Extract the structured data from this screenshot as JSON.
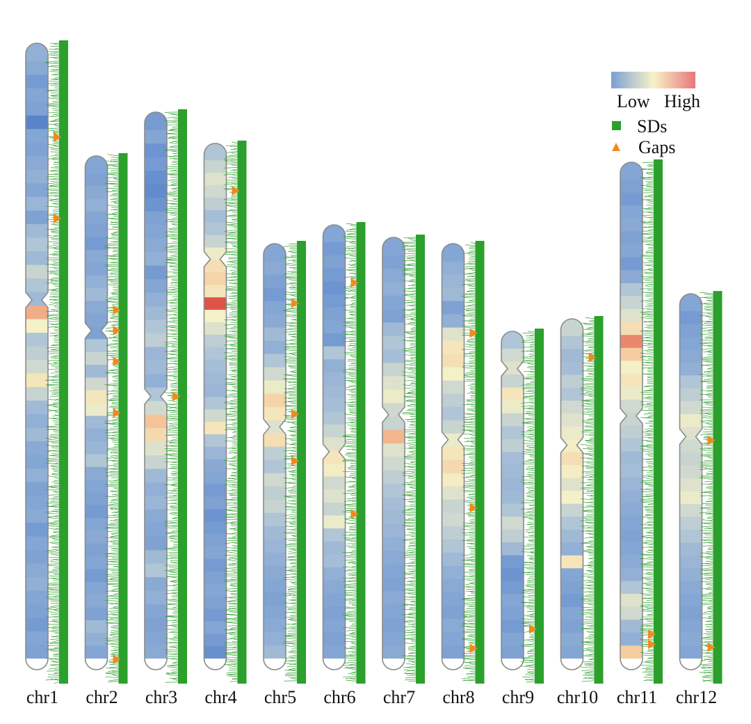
{
  "chart_data": {
    "type": "chromosome-ideogram",
    "title": "",
    "description_units": "positions are fractions of chromosome length (0 = top, 1 = bottom); density values 0 = low, 1 = high",
    "legend": {
      "gradient_low_label": "Low",
      "gradient_high_label": "High",
      "gradient_colors": [
        "#7b9fd3",
        "#f7f3c9",
        "#e8777a"
      ],
      "sds_label": "SDs",
      "gaps_label": "Gaps",
      "sds_color": "#2ca02c",
      "gaps_color": "#f08a1c"
    },
    "colorscale": [
      "#4a79c8",
      "#7b9fd3",
      "#a9c0d6",
      "#f4f1c8",
      "#f6c99c",
      "#eb8f73",
      "#d93a33"
    ],
    "chromosomes": [
      {
        "name": "chr1",
        "relative_length": 1.0,
        "centromere": 0.41,
        "density": [
          0.25,
          0.22,
          0.15,
          0.2,
          0.18,
          0.05,
          0.2,
          0.18,
          0.22,
          0.25,
          0.2,
          0.28,
          0.18,
          0.3,
          0.35,
          0.3,
          0.4,
          0.35,
          0.3,
          0.75,
          0.5,
          0.35,
          0.38,
          0.42,
          0.55,
          0.4,
          0.3,
          0.25,
          0.3,
          0.22,
          0.2,
          0.25,
          0.18,
          0.2,
          0.22,
          0.15,
          0.2,
          0.18,
          0.22,
          0.25,
          0.2,
          0.18,
          0.15,
          0.2,
          0.18
        ],
        "gaps": [
          0.15,
          0.28
        ]
      },
      {
        "name": "chr2",
        "relative_length": 0.82,
        "centromere": 0.34,
        "density": [
          0.2,
          0.18,
          0.22,
          0.25,
          0.2,
          0.18,
          0.15,
          0.22,
          0.2,
          0.25,
          0.3,
          0.22,
          0.2,
          0.18,
          0.35,
          0.4,
          0.3,
          0.42,
          0.55,
          0.48,
          0.3,
          0.25,
          0.28,
          0.35,
          0.22,
          0.2,
          0.18,
          0.15,
          0.2,
          0.22,
          0.18,
          0.2,
          0.15,
          0.2,
          0.22,
          0.18,
          0.3,
          0.25,
          0.2
        ],
        "gaps": [
          0.3,
          0.34,
          0.4,
          0.5,
          0.98
        ]
      },
      {
        "name": "chr3",
        "relative_length": 0.89,
        "centromere": 0.51,
        "density": [
          0.15,
          0.2,
          0.12,
          0.15,
          0.1,
          0.08,
          0.12,
          0.18,
          0.2,
          0.22,
          0.25,
          0.15,
          0.2,
          0.25,
          0.3,
          0.35,
          0.38,
          0.28,
          0.3,
          0.25,
          0.35,
          0.42,
          0.68,
          0.6,
          0.45,
          0.4,
          0.3,
          0.25,
          0.28,
          0.22,
          0.2,
          0.18,
          0.3,
          0.35,
          0.22,
          0.25,
          0.2,
          0.18,
          0.2,
          0.22
        ],
        "gaps": [
          0.51
        ]
      },
      {
        "name": "chr4",
        "relative_length": 0.84,
        "centromere": 0.22,
        "density": [
          0.35,
          0.4,
          0.45,
          0.42,
          0.38,
          0.32,
          0.35,
          0.4,
          0.48,
          0.58,
          0.62,
          0.55,
          0.95,
          0.5,
          0.45,
          0.38,
          0.35,
          0.32,
          0.3,
          0.28,
          0.35,
          0.42,
          0.55,
          0.35,
          0.28,
          0.22,
          0.2,
          0.15,
          0.18,
          0.12,
          0.15,
          0.18,
          0.2,
          0.15,
          0.18,
          0.2,
          0.18,
          0.15,
          0.2,
          0.15,
          0.1
        ],
        "gaps": [
          0.09
        ]
      },
      {
        "name": "chr5",
        "relative_length": 0.68,
        "centromere": 0.43,
        "density": [
          0.2,
          0.22,
          0.18,
          0.15,
          0.2,
          0.22,
          0.3,
          0.25,
          0.35,
          0.42,
          0.48,
          0.62,
          0.55,
          0.45,
          0.58,
          0.38,
          0.35,
          0.42,
          0.38,
          0.4,
          0.35,
          0.3,
          0.28,
          0.25,
          0.22,
          0.2,
          0.18,
          0.2,
          0.22,
          0.25,
          0.3
        ],
        "gaps": [
          0.14,
          0.4,
          0.51
        ]
      },
      {
        "name": "chr6",
        "relative_length": 0.71,
        "centromere": 0.51,
        "density": [
          0.2,
          0.15,
          0.18,
          0.15,
          0.12,
          0.15,
          0.18,
          0.2,
          0.15,
          0.35,
          0.25,
          0.28,
          0.3,
          0.32,
          0.35,
          0.4,
          0.45,
          0.55,
          0.52,
          0.42,
          0.45,
          0.4,
          0.48,
          0.35,
          0.3,
          0.32,
          0.25,
          0.22,
          0.2,
          0.18,
          0.2,
          0.18,
          0.2
        ],
        "gaps": [
          0.13,
          0.65
        ]
      },
      {
        "name": "chr7",
        "relative_length": 0.69,
        "centromere": 0.41,
        "density": [
          0.2,
          0.18,
          0.22,
          0.25,
          0.2,
          0.18,
          0.3,
          0.35,
          0.32,
          0.4,
          0.45,
          0.48,
          0.42,
          0.4,
          0.72,
          0.45,
          0.42,
          0.38,
          0.35,
          0.32,
          0.3,
          0.28,
          0.25,
          0.22,
          0.2,
          0.18,
          0.22,
          0.2,
          0.18,
          0.2,
          0.22
        ]
      },
      {
        "name": "chr8",
        "relative_length": 0.68,
        "centromere": 0.46,
        "density": [
          0.2,
          0.25,
          0.28,
          0.3,
          0.18,
          0.25,
          0.45,
          0.55,
          0.58,
          0.5,
          0.42,
          0.38,
          0.35,
          0.4,
          0.48,
          0.55,
          0.6,
          0.52,
          0.45,
          0.4,
          0.42,
          0.38,
          0.35,
          0.3,
          0.25,
          0.22,
          0.2,
          0.18,
          0.22,
          0.2,
          0.18
        ],
        "gaps": [
          0.21,
          0.62,
          0.95
        ]
      },
      {
        "name": "chr9",
        "relative_length": 0.54,
        "centromere": 0.11,
        "density": [
          0.35,
          0.42,
          0.45,
          0.4,
          0.55,
          0.48,
          0.4,
          0.35,
          0.38,
          0.32,
          0.3,
          0.28,
          0.3,
          0.35,
          0.42,
          0.38,
          0.3,
          0.15,
          0.12,
          0.15,
          0.2,
          0.18,
          0.15,
          0.2,
          0.18
        ],
        "gaps": [
          0.88
        ]
      },
      {
        "name": "chr10",
        "relative_length": 0.56,
        "centromere": 0.36,
        "density": [
          0.4,
          0.35,
          0.3,
          0.32,
          0.38,
          0.35,
          0.42,
          0.45,
          0.48,
          0.52,
          0.58,
          0.52,
          0.45,
          0.5,
          0.4,
          0.35,
          0.3,
          0.25,
          0.55,
          0.2,
          0.18,
          0.15,
          0.2,
          0.18,
          0.22,
          0.2
        ],
        "gaps": [
          0.11
        ]
      },
      {
        "name": "chr11",
        "relative_length": 0.81,
        "centromere": 0.5,
        "density": [
          0.2,
          0.18,
          0.15,
          0.2,
          0.22,
          0.18,
          0.2,
          0.15,
          0.22,
          0.35,
          0.4,
          0.45,
          0.58,
          0.85,
          0.65,
          0.5,
          0.55,
          0.48,
          0.42,
          0.4,
          0.38,
          0.35,
          0.3,
          0.32,
          0.28,
          0.25,
          0.22,
          0.2,
          0.18,
          0.2,
          0.22,
          0.25,
          0.35,
          0.45,
          0.42,
          0.3,
          0.25,
          0.65
        ],
        "gaps": [
          0.93,
          0.95
        ]
      },
      {
        "name": "chr12",
        "relative_length": 0.6,
        "centromere": 0.38,
        "density": [
          0.2,
          0.15,
          0.18,
          0.2,
          0.22,
          0.25,
          0.35,
          0.38,
          0.42,
          0.48,
          0.45,
          0.42,
          0.4,
          0.42,
          0.45,
          0.48,
          0.42,
          0.38,
          0.35,
          0.3,
          0.28,
          0.25,
          0.22,
          0.2,
          0.18,
          0.2,
          0.22,
          0.2
        ],
        "gaps": [
          0.39,
          0.94
        ]
      }
    ]
  }
}
